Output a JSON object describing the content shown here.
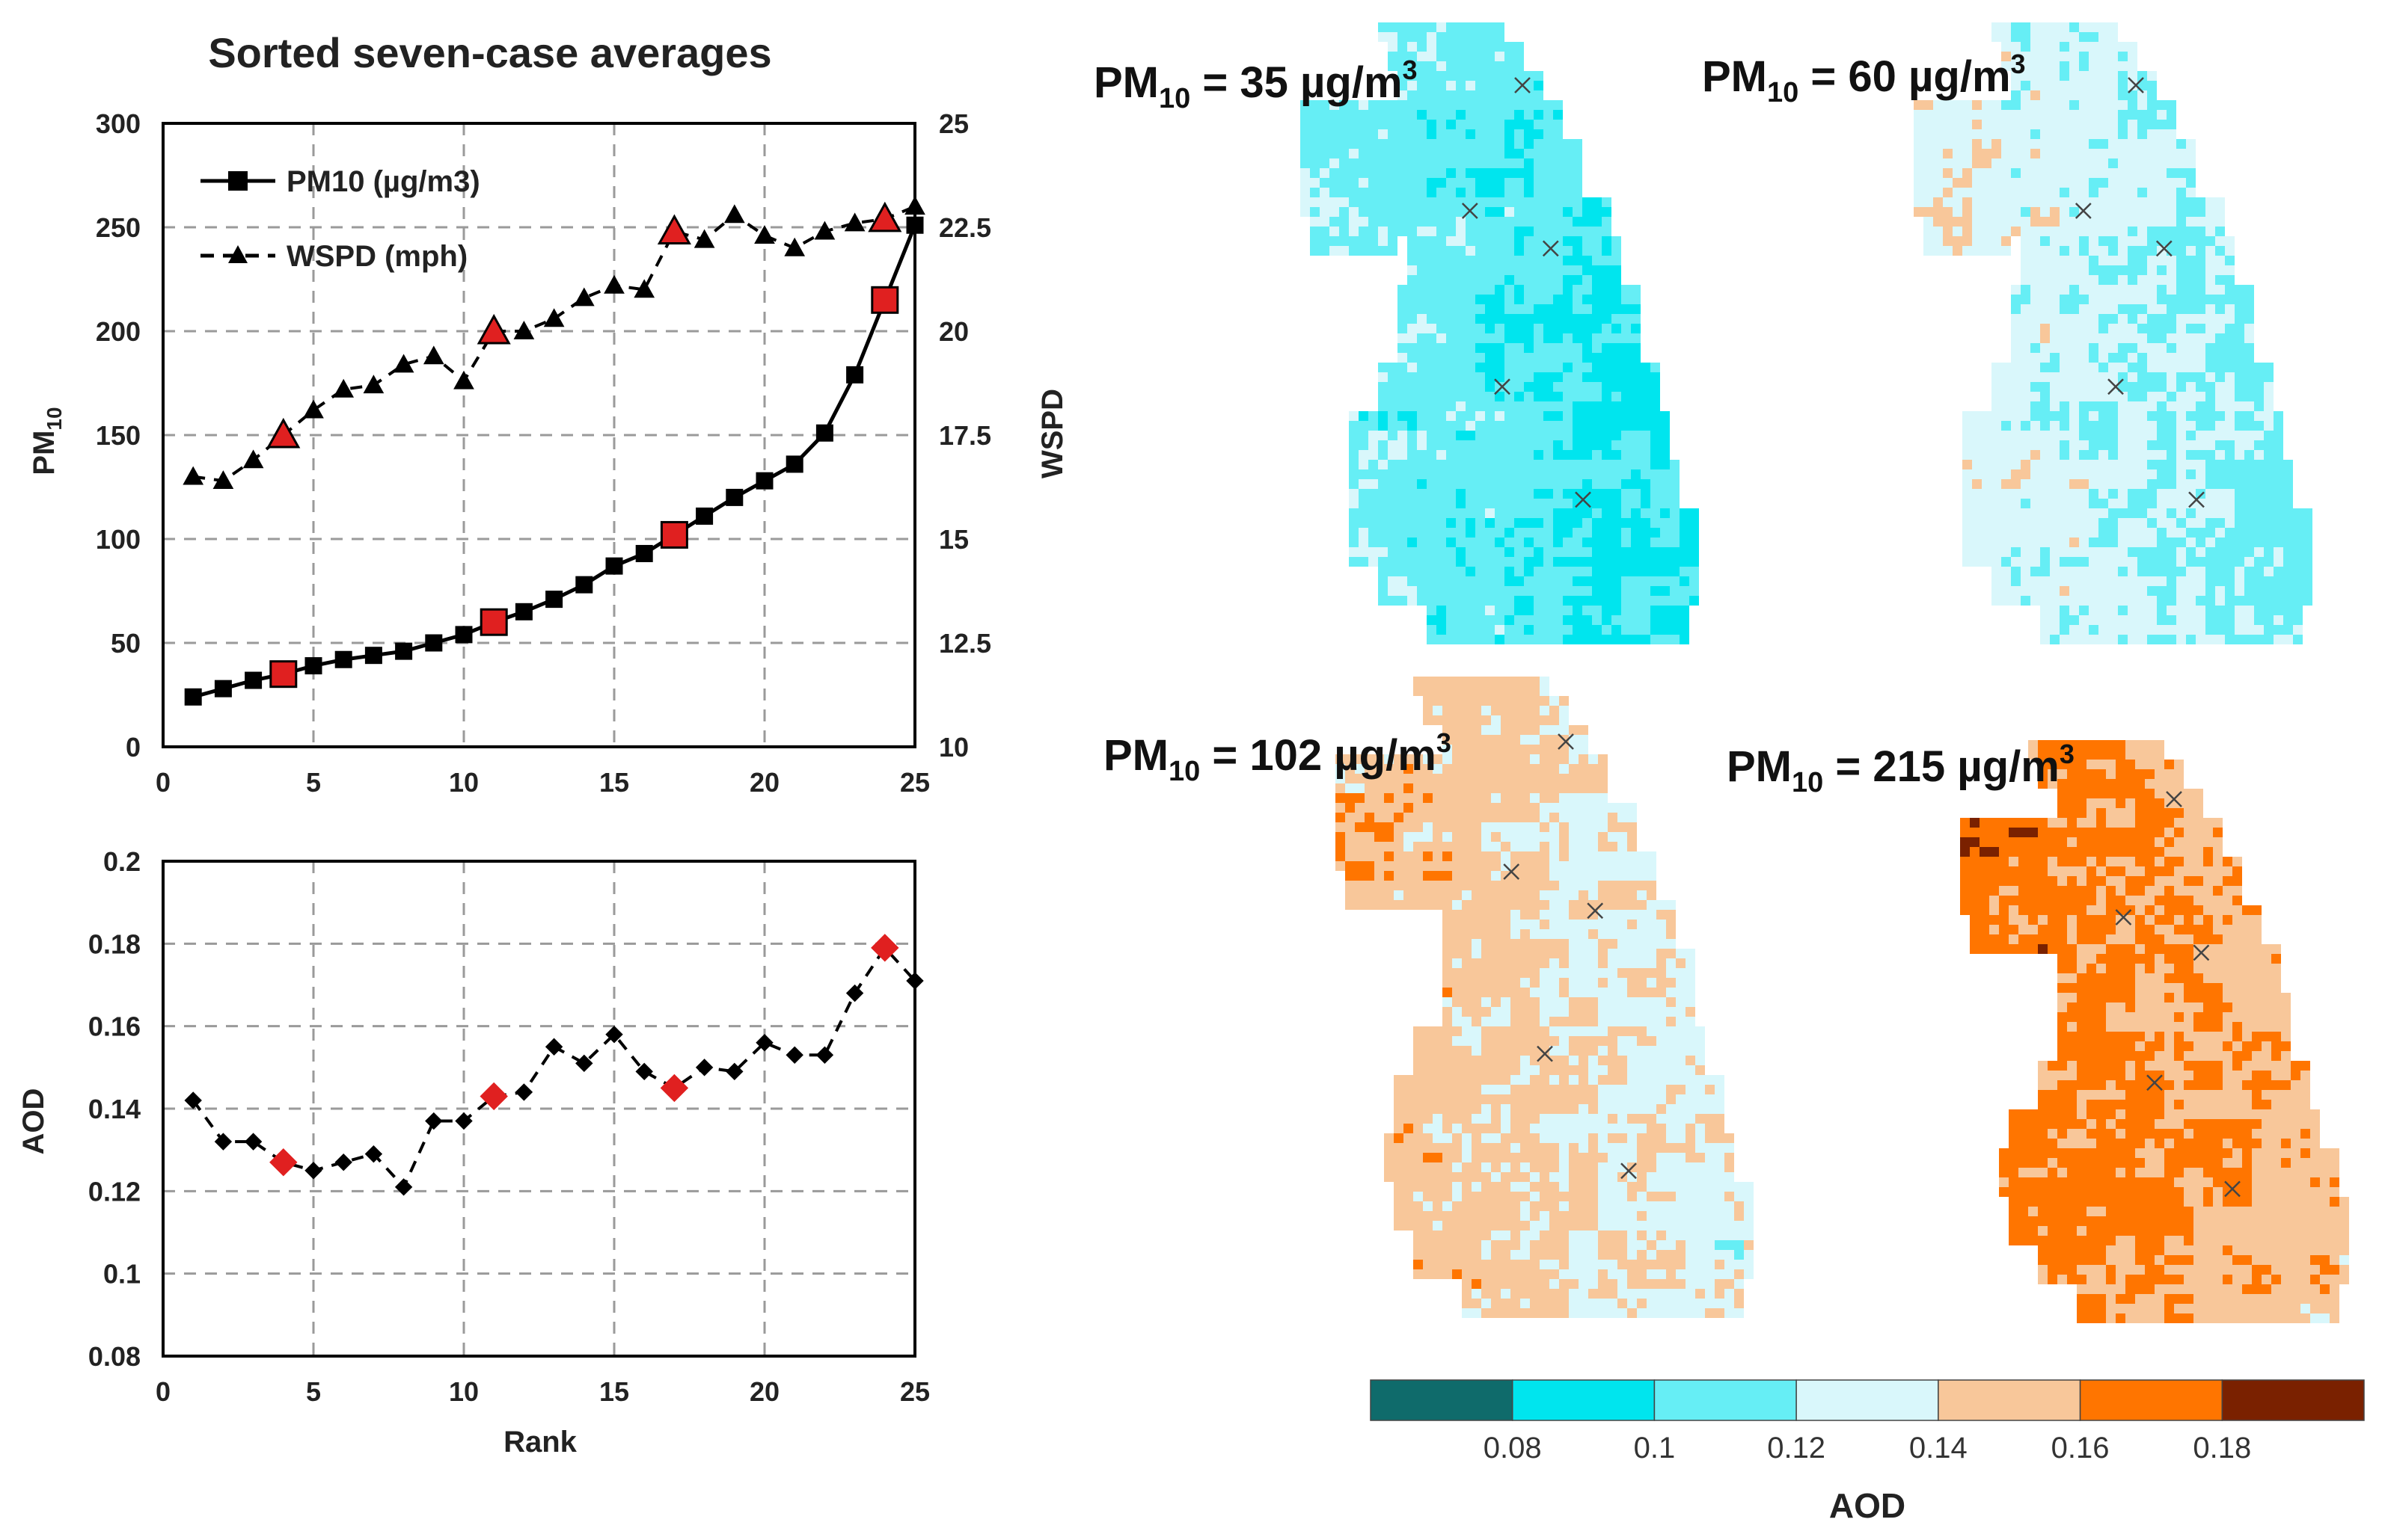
{
  "chart_data": [
    {
      "type": "line",
      "title": "Sorted seven-case averages",
      "xlabel": "",
      "ylabel": "PM10",
      "ylabel_right": "WSPD",
      "xlim": [
        0,
        25
      ],
      "ylim": [
        0,
        300
      ],
      "ylim_right": [
        10,
        25
      ],
      "x_ticks": [
        "0",
        "5",
        "10",
        "15",
        "20",
        "25"
      ],
      "y_ticks": [
        "0",
        "50",
        "100",
        "150",
        "200",
        "250",
        "300"
      ],
      "y_ticks_right": [
        "10",
        "12.5",
        "15",
        "17.5",
        "20",
        "22.5",
        "25"
      ],
      "grid": true,
      "legend_position": "top-left",
      "series": [
        {
          "name": "PM10 (µg/m3)",
          "axis": "left",
          "style": "solid-square",
          "x": [
            1,
            2,
            3,
            4,
            5,
            6,
            7,
            8,
            9,
            10,
            11,
            12,
            13,
            14,
            15,
            16,
            17,
            18,
            19,
            20,
            21,
            22,
            23,
            24,
            25
          ],
          "values": [
            24,
            28,
            32,
            35,
            39,
            42,
            44,
            46,
            50,
            54,
            60,
            65,
            71,
            78,
            87,
            93,
            102,
            111,
            120,
            128,
            136,
            151,
            179,
            215,
            251
          ],
          "highlight_index": [
            3,
            10,
            16,
            23
          ]
        },
        {
          "name": "WSPD (mph)",
          "axis": "right",
          "style": "dashed-triangle",
          "x": [
            1,
            2,
            3,
            4,
            5,
            6,
            7,
            8,
            9,
            10,
            11,
            12,
            13,
            14,
            15,
            16,
            17,
            18,
            19,
            20,
            21,
            22,
            23,
            24,
            25
          ],
          "values": [
            16.5,
            16.4,
            16.9,
            17.5,
            18.1,
            18.6,
            18.7,
            19.2,
            19.4,
            18.8,
            20.0,
            20.0,
            20.3,
            20.8,
            21.1,
            21.0,
            22.4,
            22.2,
            22.8,
            22.3,
            22.0,
            22.4,
            22.6,
            22.7,
            23.0
          ],
          "highlight_index": [
            3,
            10,
            16,
            23
          ]
        }
      ]
    },
    {
      "type": "line",
      "title": "",
      "xlabel": "Rank",
      "ylabel": "AOD",
      "xlim": [
        0,
        25
      ],
      "ylim": [
        0.08,
        0.2
      ],
      "x_ticks": [
        "0",
        "5",
        "10",
        "15",
        "20",
        "25"
      ],
      "y_ticks": [
        "0.08",
        "0.1",
        "0.12",
        "0.14",
        "0.16",
        "0.18",
        "0.2"
      ],
      "grid": true,
      "series": [
        {
          "name": "AOD",
          "style": "dashed-diamond",
          "x": [
            1,
            2,
            3,
            4,
            5,
            6,
            7,
            8,
            9,
            10,
            11,
            12,
            13,
            14,
            15,
            16,
            17,
            18,
            19,
            20,
            21,
            22,
            23,
            24,
            25
          ],
          "values": [
            0.142,
            0.132,
            0.132,
            0.127,
            0.125,
            0.127,
            0.129,
            0.121,
            0.137,
            0.137,
            0.143,
            0.144,
            0.155,
            0.151,
            0.158,
            0.149,
            0.145,
            0.15,
            0.149,
            0.156,
            0.153,
            0.153,
            0.168,
            0.179,
            0.171
          ],
          "highlight_index": [
            3,
            10,
            16,
            23
          ]
        }
      ]
    },
    {
      "type": "heatmap",
      "maps": [
        {
          "prefix": "PM",
          "sub": "10",
          "mid": " = 35 µg/m",
          "sup": "3",
          "level": 0
        },
        {
          "prefix": "PM",
          "sub": "10",
          "mid": " = 60 µg/m",
          "sup": "3",
          "level": 1
        },
        {
          "prefix": "PM",
          "sub": "10",
          "mid": " = 102 µg/m",
          "sup": "3",
          "level": 2
        },
        {
          "prefix": "PM",
          "sub": "10",
          "mid": " = 215 µg/m",
          "sup": "3",
          "level": 3
        }
      ],
      "colorbar": {
        "title": "AOD",
        "ticks": [
          "0.08",
          "0.1",
          "0.12",
          "0.14",
          "0.16",
          "0.18"
        ],
        "colors": [
          "#0f6b6b",
          "#00e5ee",
          "#66eef5",
          "#d9f7fb",
          "#f8c79a",
          "#ff7500",
          "#7a2100"
        ]
      }
    }
  ],
  "colors": {
    "marker_highlight": "#e02020",
    "marker_normal": "#000000",
    "grid": "#9a9a9a"
  }
}
